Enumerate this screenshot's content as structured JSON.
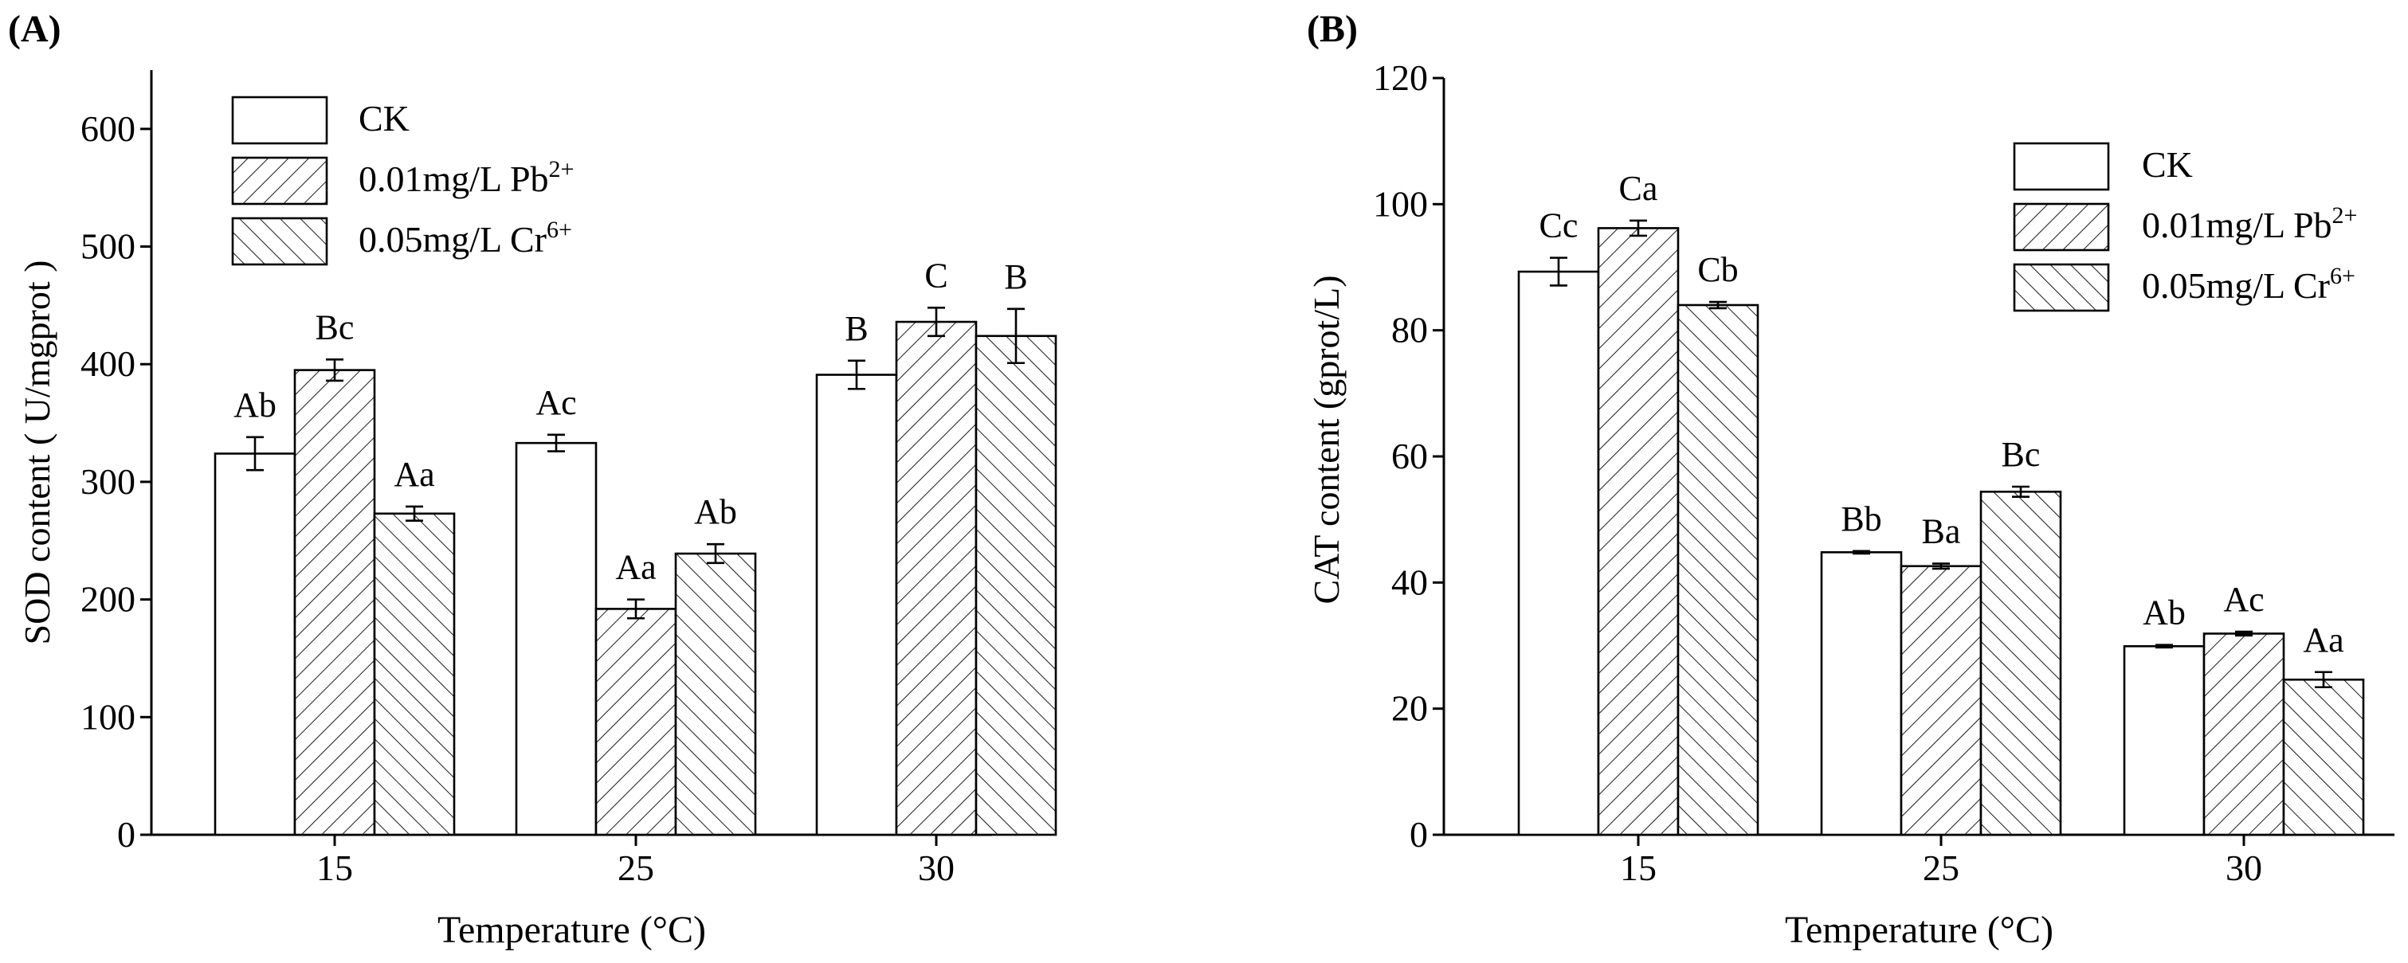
{
  "chart_data": [
    {
      "type": "bar",
      "panel_label": "(A)",
      "xlabel": "Temperature (°C)",
      "ylabel": "SOD content ( U/mgprot )",
      "ylim": [
        0,
        650
      ],
      "yticks": [
        0,
        100,
        200,
        300,
        400,
        500,
        600
      ],
      "categories": [
        "15",
        "25",
        "30"
      ],
      "legend_position": "top-left",
      "series": [
        {
          "name": "CK",
          "sup": "",
          "pattern": "none",
          "values": [
            324,
            333,
            391
          ],
          "errors": [
            14,
            7,
            12
          ],
          "labels": [
            "Ab",
            "Ac",
            "B"
          ]
        },
        {
          "name": "0.01mg/L Pb",
          "sup": "2+",
          "pattern": "forward",
          "values": [
            395,
            192,
            436
          ],
          "errors": [
            9,
            8,
            12
          ],
          "labels": [
            "Bc",
            "Aa",
            "C"
          ]
        },
        {
          "name": "0.05mg/L Cr",
          "sup": "6+",
          "pattern": "back",
          "values": [
            273,
            239,
            424
          ],
          "errors": [
            6,
            8,
            23
          ],
          "labels": [
            "Aa",
            "Ab",
            "B"
          ]
        }
      ]
    },
    {
      "type": "bar",
      "panel_label": "(B)",
      "xlabel": "Temperature (°C)",
      "ylabel": "CAT content (gprot/L)",
      "ylim": [
        0,
        120
      ],
      "yticks": [
        0,
        20,
        40,
        60,
        80,
        100,
        120
      ],
      "categories": [
        "15",
        "25",
        "30"
      ],
      "legend_position": "top-right",
      "series": [
        {
          "name": "CK",
          "sup": "",
          "pattern": "none",
          "values": [
            89.3,
            44.8,
            29.9
          ],
          "errors": [
            2.2,
            0.2,
            0.2
          ],
          "labels": [
            "Cc",
            "Bb",
            "Ab"
          ]
        },
        {
          "name": "0.01mg/L Pb",
          "sup": "2+",
          "pattern": "forward",
          "values": [
            96.2,
            42.6,
            31.9
          ],
          "errors": [
            1.2,
            0.4,
            0.3
          ],
          "labels": [
            "Ca",
            "Ba",
            "Ac"
          ]
        },
        {
          "name": "0.05mg/L Cr",
          "sup": "6+",
          "pattern": "back",
          "values": [
            84.0,
            54.4,
            24.6
          ],
          "errors": [
            0.5,
            0.8,
            1.2
          ],
          "labels": [
            "Cb",
            "Bc",
            "Aa"
          ]
        }
      ]
    }
  ]
}
